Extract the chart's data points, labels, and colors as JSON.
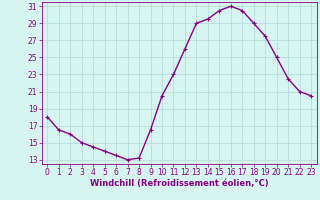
{
  "hours": [
    0,
    1,
    2,
    3,
    4,
    5,
    6,
    7,
    8,
    9,
    10,
    11,
    12,
    13,
    14,
    15,
    16,
    17,
    18,
    19,
    20,
    21,
    22,
    23
  ],
  "values": [
    18.0,
    16.5,
    16.0,
    15.0,
    14.5,
    14.0,
    13.5,
    13.0,
    13.2,
    16.5,
    20.5,
    23.0,
    26.0,
    29.0,
    29.5,
    30.5,
    31.0,
    30.5,
    29.0,
    27.5,
    25.0,
    22.5,
    21.0,
    20.5
  ],
  "line_color": "#880088",
  "marker": "+",
  "marker_size": 3,
  "marker_edge_width": 0.8,
  "background_color": "#d6f5f0",
  "grid_color": "#b0d8d8",
  "xlabel": "Windchill (Refroidissement éolien,°C)",
  "ylim_min": 12.5,
  "ylim_max": 31.5,
  "xlim_min": -0.5,
  "xlim_max": 23.5,
  "yticks": [
    13,
    15,
    17,
    19,
    21,
    23,
    25,
    27,
    29,
    31
  ],
  "xticks": [
    0,
    1,
    2,
    3,
    4,
    5,
    6,
    7,
    8,
    9,
    10,
    11,
    12,
    13,
    14,
    15,
    16,
    17,
    18,
    19,
    20,
    21,
    22,
    23
  ],
  "tick_label_color": "#880088",
  "xlabel_color": "#880088",
  "spine_color": "#880088",
  "tick_fontsize": 5.5,
  "xlabel_fontsize": 6.0,
  "line_width": 1.0
}
